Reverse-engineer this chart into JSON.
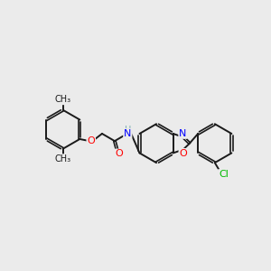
{
  "background_color": "#ebebeb",
  "bond_color": "#1a1a1a",
  "atom_colors": {
    "O": "#ff0000",
    "N": "#0000ff",
    "Cl": "#00bb00",
    "H": "#7aafb0",
    "C": "#1a1a1a"
  },
  "lw": 1.4,
  "lw_double_inner": 1.2,
  "font_size": 7.5,
  "fig_width": 3.0,
  "fig_height": 3.0,
  "dpi": 100
}
